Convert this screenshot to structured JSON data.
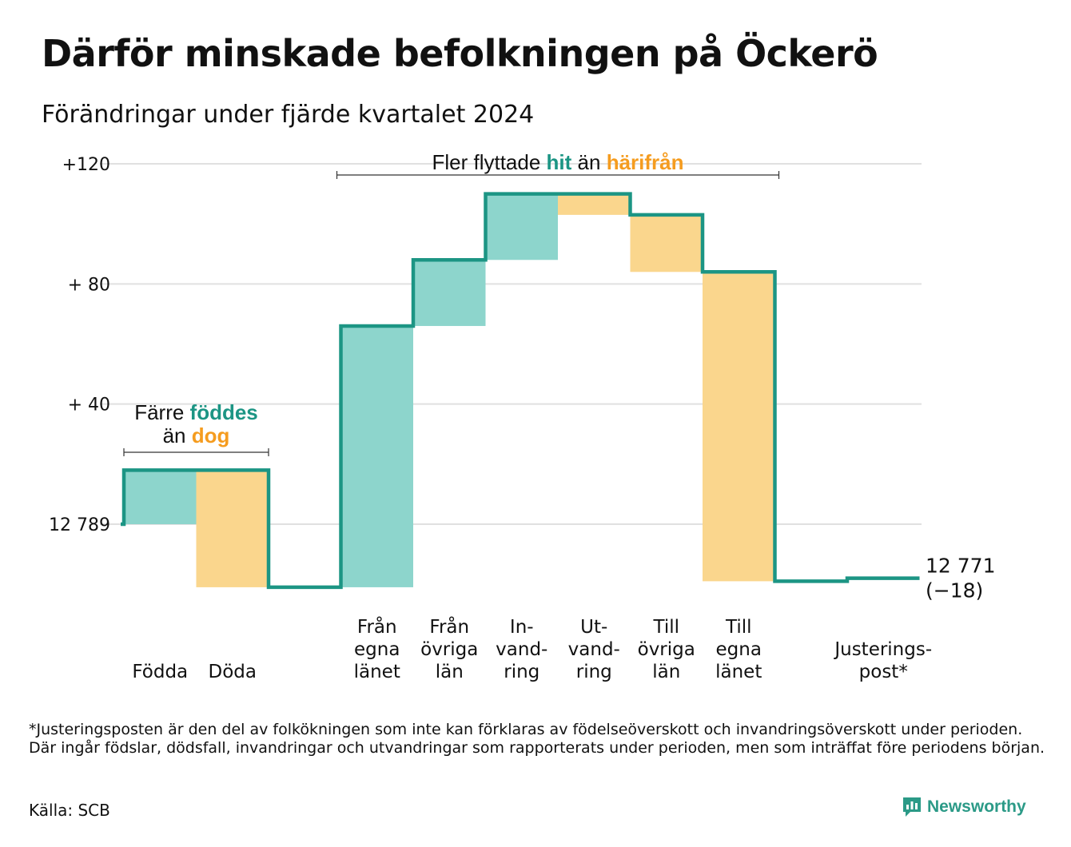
{
  "title": "Därför minskade befolkningen på Öckerö",
  "subtitle": "Förändringar under fjärde kvartalet 2024",
  "chart_data": {
    "type": "waterfall",
    "baseline_label": "12 789",
    "start_value": 12789,
    "end_value": 12771,
    "end_label_value": "12 771",
    "end_label_change": "(−18)",
    "y_range": [
      -21,
      122
    ],
    "y_ticks": [
      {
        "value": 0,
        "label": "12 789"
      },
      {
        "value": 40,
        "label": "+ 40"
      },
      {
        "value": 80,
        "label": "+ 80"
      },
      {
        "value": 120,
        "label": "+120"
      }
    ],
    "grid": true,
    "categories": [
      {
        "label": [
          "Födda"
        ],
        "change": 18,
        "kind": "in"
      },
      {
        "label": [
          "Döda"
        ],
        "change": -39,
        "kind": "out"
      },
      {
        "label": [],
        "change": 0,
        "kind": "none"
      },
      {
        "label": [
          "Från",
          "egna",
          "länet"
        ],
        "change": 87,
        "kind": "in"
      },
      {
        "label": [
          "Från",
          "övriga",
          "län"
        ],
        "change": 22,
        "kind": "in"
      },
      {
        "label": [
          "In-",
          "vand-",
          "ring"
        ],
        "change": 22,
        "kind": "in"
      },
      {
        "label": [
          "Ut-",
          "vand-",
          "ring"
        ],
        "change": -7,
        "kind": "out"
      },
      {
        "label": [
          "Till",
          "övriga",
          "län"
        ],
        "change": -19,
        "kind": "out"
      },
      {
        "label": [
          "Till",
          "egna",
          "länet"
        ],
        "change": -103,
        "kind": "out"
      },
      {
        "label": [],
        "change": 0,
        "kind": "none"
      },
      {
        "label": [
          "Justerings-",
          "post*"
        ],
        "change": 1,
        "kind": "adjust"
      }
    ],
    "annotations": {
      "births": {
        "line1": "Färre",
        "hl1": "föddes",
        "line2": "än",
        "hl2": "dog"
      },
      "moves": {
        "lead": "Fler flyttade",
        "hl1": "hit",
        "mid": "än",
        "hl2": "härifrån"
      }
    },
    "colors": {
      "in_fill": "#8dd5cc",
      "out_fill": "#fad68d",
      "line": "#1c9584",
      "in_text": "#1c9584",
      "out_text": "#f59c1f",
      "grid": "#e0e0e0"
    }
  },
  "footnote": "*Justeringsposten är den del av folkökningen som inte kan förklaras av födelseöverskott och invandringsöverskott under perioden. Där ingår födslar, dödsfall, invandringar och utvandringar som rapporterats under perioden, men som inträffat före periodens början.",
  "source": "Källa: SCB",
  "brand": {
    "name": "Newsworthy",
    "icon": "newsworthy-logo-icon"
  }
}
